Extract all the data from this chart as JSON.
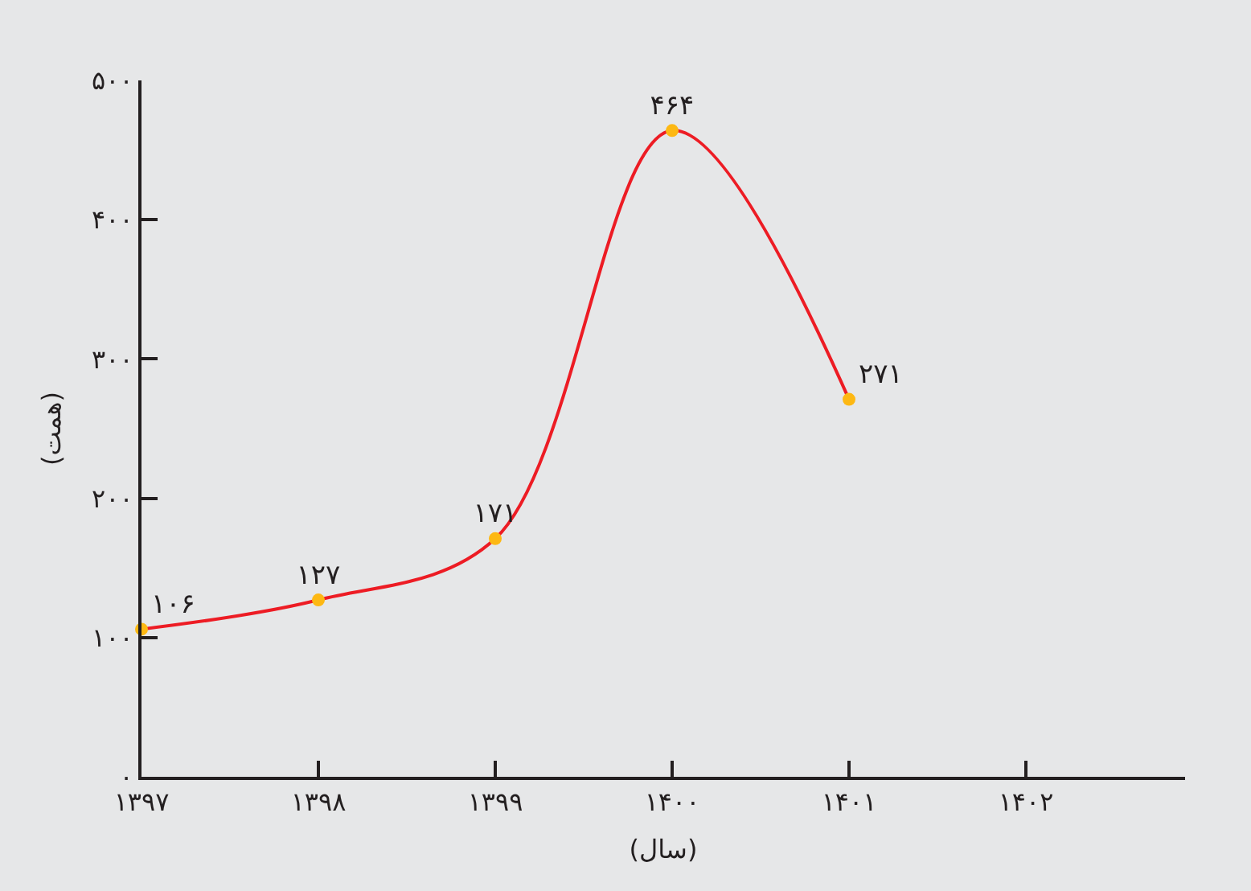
{
  "chart_data": {
    "type": "line",
    "xlabel": "(سال)",
    "ylabel": "(همت)",
    "x": [
      1397,
      1398,
      1399,
      1400,
      1401
    ],
    "series": [
      {
        "color": "#ed1c24",
        "values": [
          106,
          127,
          171,
          464,
          271
        ],
        "value_labels": [
          "۱۰۶",
          "۱۲۷",
          "۱۷۱",
          "۴۶۴",
          "۲۷۱"
        ],
        "colors": [
          "#fdb813",
          "#fdb813",
          "#fdb813",
          "#fdb813",
          "#fdb813"
        ]
      }
    ],
    "xlim": [
      1397,
      1402.9
    ],
    "xticks": [
      {
        "value": 1397,
        "label": "۱۳۹۷"
      },
      {
        "value": 1398,
        "label": "۱۳۹۸"
      },
      {
        "value": 1399,
        "label": "۱۳۹۹"
      },
      {
        "value": 1400,
        "label": "۱۴۰۰"
      },
      {
        "value": 1401,
        "label": "۱۴۰۱"
      },
      {
        "value": 1402,
        "label": "۱۴۰۲"
      }
    ],
    "ylim": [
      0,
      500
    ],
    "yticks": [
      {
        "value": 0,
        "label": "۰"
      },
      {
        "value": 100,
        "label": "۱۰۰"
      },
      {
        "value": 200,
        "label": "۲۰۰"
      },
      {
        "value": 300,
        "label": "۳۰۰"
      },
      {
        "value": 400,
        "label": "۴۰۰"
      },
      {
        "value": 500,
        "label": "۵۰۰"
      }
    ],
    "grid": false,
    "legend": false,
    "marker": "circle",
    "line_style": "solid"
  }
}
